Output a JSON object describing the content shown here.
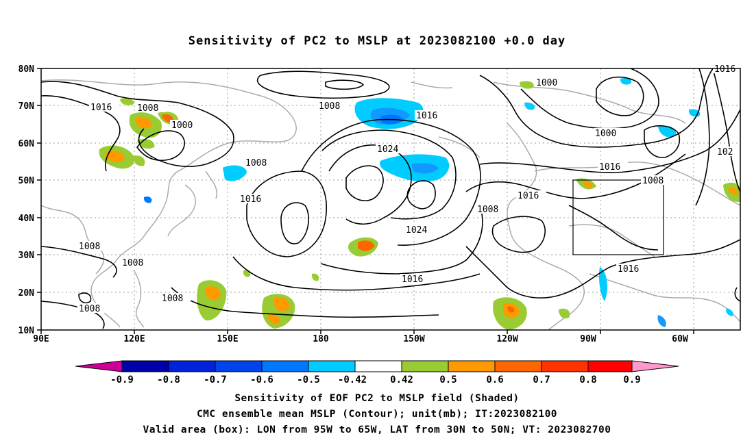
{
  "title": "Sensitivity of PC2 to MSLP at 2023082100 +0.0 day",
  "map": {
    "lat_labels": [
      "80N",
      "70N",
      "60N",
      "50N",
      "40N",
      "30N",
      "20N",
      "10N"
    ],
    "lon_labels": [
      "90E",
      "120E",
      "150E",
      "180",
      "150W",
      "120W",
      "90W",
      "60W"
    ],
    "contour_labels": [
      {
        "text": "1016"
      },
      {
        "text": "1008"
      },
      {
        "text": "1000"
      },
      {
        "text": "1008"
      },
      {
        "text": "1016"
      },
      {
        "text": "1024"
      },
      {
        "text": "1008"
      },
      {
        "text": "1016"
      },
      {
        "text": "1024"
      },
      {
        "text": "1008"
      },
      {
        "text": "1008"
      },
      {
        "text": "1008"
      },
      {
        "text": "1008"
      },
      {
        "text": "1016"
      },
      {
        "text": "1008"
      },
      {
        "text": "1016"
      },
      {
        "text": "1000"
      },
      {
        "text": "1000"
      },
      {
        "text": "1016"
      },
      {
        "text": "1008"
      },
      {
        "text": "1016"
      },
      {
        "text": "1016"
      },
      {
        "text": "102"
      }
    ],
    "valid_box": {
      "lon_from": "95W",
      "lon_to": "65W",
      "lat_from": "30N",
      "lat_to": "50N"
    }
  },
  "colorbar": {
    "labels": [
      "-0.9",
      "-0.8",
      "-0.7",
      "-0.6",
      "-0.5",
      "-0.42",
      "0.42",
      "0.5",
      "0.6",
      "0.7",
      "0.8",
      "0.9"
    ],
    "colors": [
      "#cc0099",
      "#0000aa",
      "#0022dd",
      "#0044ee",
      "#0077ff",
      "#1199ff",
      "#00ccff",
      "#ffffff",
      "#99cc33",
      "#ff9900",
      "#ff6600",
      "#ff3300",
      "#ff0000",
      "#ff99cc"
    ]
  },
  "captions": {
    "line1": "Sensitivity of EOF PC2 to MSLP field (Shaded)",
    "line2": "CMC ensemble mean MSLP (Contour); unit(mb); IT:2023082100",
    "line3": "Valid area (box): LON from 95W to 65W, LAT from 30N to 50N; VT: 2023082700"
  }
}
